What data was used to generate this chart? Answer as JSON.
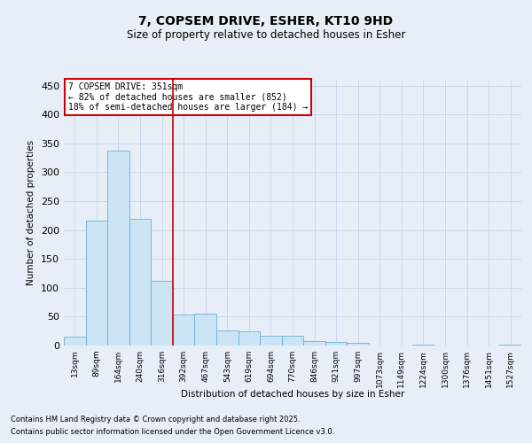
{
  "title_line1": "7, COPSEM DRIVE, ESHER, KT10 9HD",
  "title_line2": "Size of property relative to detached houses in Esher",
  "xlabel": "Distribution of detached houses by size in Esher",
  "ylabel": "Number of detached properties",
  "bar_labels": [
    "13sqm",
    "89sqm",
    "164sqm",
    "240sqm",
    "316sqm",
    "392sqm",
    "467sqm",
    "543sqm",
    "619sqm",
    "694sqm",
    "770sqm",
    "846sqm",
    "921sqm",
    "997sqm",
    "1073sqm",
    "1149sqm",
    "1224sqm",
    "1300sqm",
    "1376sqm",
    "1451sqm",
    "1527sqm"
  ],
  "bar_values": [
    15,
    216,
    338,
    220,
    112,
    54,
    55,
    26,
    25,
    17,
    17,
    8,
    6,
    5,
    0,
    0,
    1,
    0,
    0,
    0,
    1
  ],
  "bar_color": "#cce5f5",
  "bar_edge_color": "#6baed6",
  "vline_x": 4.5,
  "vline_color": "#cc0000",
  "annotation_text": "7 COPSEM DRIVE: 351sqm\n← 82% of detached houses are smaller (852)\n18% of semi-detached houses are larger (184) →",
  "annotation_box_color": "#cc0000",
  "ylim": [
    0,
    460
  ],
  "yticks": [
    0,
    50,
    100,
    150,
    200,
    250,
    300,
    350,
    400,
    450
  ],
  "grid_color": "#c8d4e8",
  "background_color": "#e8eef8",
  "footer_line1": "Contains HM Land Registry data © Crown copyright and database right 2025.",
  "footer_line2": "Contains public sector information licensed under the Open Government Licence v3.0."
}
